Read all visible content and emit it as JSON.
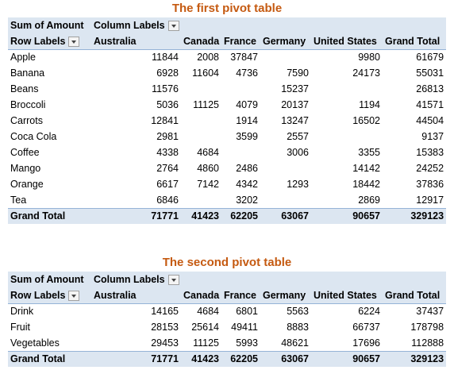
{
  "tables": [
    {
      "title": "The first pivot table",
      "corner": "Sum of Amount",
      "column_labels": "Column Labels",
      "row_labels": "Row Labels",
      "columns": [
        "Australia",
        "Canada",
        "France",
        "Germany",
        "United States",
        "Grand Total"
      ],
      "rows": [
        {
          "label": "Apple",
          "values": [
            11844,
            2008,
            37847,
            null,
            9980,
            61679
          ]
        },
        {
          "label": "Banana",
          "values": [
            6928,
            11604,
            4736,
            7590,
            24173,
            55031
          ]
        },
        {
          "label": "Beans",
          "values": [
            11576,
            null,
            null,
            15237,
            null,
            26813
          ]
        },
        {
          "label": "Broccoli",
          "values": [
            5036,
            11125,
            4079,
            20137,
            1194,
            41571
          ]
        },
        {
          "label": "Carrots",
          "values": [
            12841,
            null,
            1914,
            13247,
            16502,
            44504
          ]
        },
        {
          "label": "Coca Cola",
          "values": [
            2981,
            null,
            3599,
            2557,
            null,
            9137
          ]
        },
        {
          "label": "Coffee",
          "values": [
            4338,
            4684,
            null,
            3006,
            3355,
            15383
          ]
        },
        {
          "label": "Mango",
          "values": [
            2764,
            4860,
            2486,
            null,
            14142,
            24252
          ]
        },
        {
          "label": "Orange",
          "values": [
            6617,
            7142,
            4342,
            1293,
            18442,
            37836
          ]
        },
        {
          "label": "Tea",
          "values": [
            6846,
            null,
            3202,
            null,
            2869,
            12917
          ]
        }
      ],
      "total": {
        "label": "Grand Total",
        "values": [
          71771,
          41423,
          62205,
          63067,
          90657,
          329123
        ]
      }
    },
    {
      "title": "The second pivot table",
      "corner": "Sum of Amount",
      "column_labels": "Column Labels",
      "row_labels": "Row Labels",
      "columns": [
        "Australia",
        "Canada",
        "France",
        "Germany",
        "United States",
        "Grand Total"
      ],
      "rows": [
        {
          "label": "Drink",
          "values": [
            14165,
            4684,
            6801,
            5563,
            6224,
            37437
          ]
        },
        {
          "label": "Fruit",
          "values": [
            28153,
            25614,
            49411,
            8883,
            66737,
            178798
          ]
        },
        {
          "label": "Vegetables",
          "values": [
            29453,
            11125,
            5993,
            48621,
            17696,
            112888
          ]
        }
      ],
      "total": {
        "label": "Grand Total",
        "values": [
          71771,
          41423,
          62205,
          63067,
          90657,
          329123
        ]
      }
    }
  ]
}
